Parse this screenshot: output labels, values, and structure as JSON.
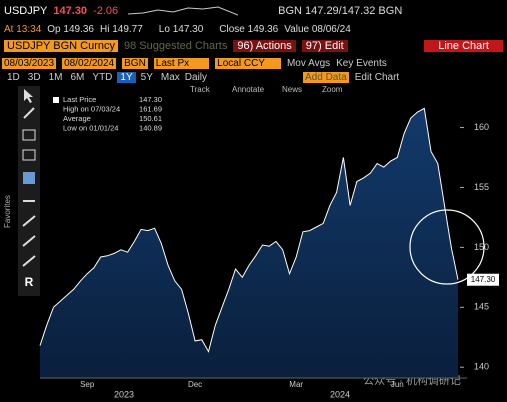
{
  "quote_bar": {
    "ticker": "USDJPY",
    "price": "147.30",
    "change": "-2.06",
    "bid_ask": "BGN 147.29/147.32 BGN"
  },
  "stats_bar": {
    "at": "At 13:34",
    "open": "Op 149.36",
    "high": "Hi 149.77",
    "low": "Lo 147.30",
    "close": "Close 149.36",
    "value": "Value 08/06/24"
  },
  "menu_bar": {
    "security": "USDJPY BGN Curncy",
    "suggested": "98 Suggested Charts",
    "actions": "96) Actions",
    "edit": "97) Edit",
    "chart_type": "Line Chart"
  },
  "settings_bar": {
    "start": "08/03/2023",
    "end": "08/02/2024",
    "source": "BGN",
    "field": "Last Px",
    "currency": "Local CCY",
    "mov_avgs": "Mov Avgs",
    "key_events": "Key Events"
  },
  "period_bar": {
    "periods": [
      "1D",
      "3D",
      "1M",
      "6M",
      "YTD",
      "1Y",
      "5Y",
      "Max"
    ],
    "frequency": "Daily",
    "add_data": "Add Data",
    "edit_chart": "Edit Chart"
  },
  "tools": [
    "Track",
    "Annotate",
    "News",
    "Zoom"
  ],
  "sidebar_label": "Favorites",
  "chart": {
    "type": "area",
    "color": "#ffffff",
    "fill": "#123a6b",
    "legend": [
      {
        "label": "Last Price",
        "value": "147.30"
      },
      {
        "label": "High on 07/03/24",
        "value": "161.69"
      },
      {
        "label": "Average",
        "value": "150.61"
      },
      {
        "label": "Low on 01/01/24",
        "value": "140.89"
      }
    ],
    "categories": [
      null,
      null,
      null,
      null,
      null,
      null,
      null,
      "Sep",
      null,
      null,
      null,
      null,
      null,
      null,
      null,
      null,
      null,
      null,
      null,
      null,
      null,
      null,
      null,
      "Dec",
      null,
      null,
      null,
      null,
      null,
      null,
      null,
      null,
      null,
      null,
      null,
      null,
      null,
      null,
      "Mar",
      null,
      null,
      null,
      null,
      null,
      null,
      null,
      null,
      null,
      null,
      null,
      null,
      null,
      null,
      "Jun",
      null,
      null,
      null,
      null,
      null,
      null,
      null,
      null,
      null
    ],
    "values": [
      141.8,
      143.5,
      145,
      145.5,
      146,
      146.5,
      147.2,
      147.8,
      148.3,
      149.2,
      149.3,
      149.5,
      149.8,
      149.6,
      150.5,
      151.5,
      151.4,
      151.6,
      150.3,
      148.5,
      147.2,
      146.5,
      144.5,
      142.2,
      142.3,
      141.3,
      143.5,
      145,
      146.5,
      148.2,
      147.5,
      148.5,
      149.3,
      150.2,
      150.1,
      150.5,
      149.8,
      147.8,
      149.2,
      151.3,
      151.4,
      151.7,
      152,
      153.5,
      154.6,
      157.5,
      153.5,
      155.5,
      155.8,
      156.2,
      157,
      156.7,
      157.2,
      157.5,
      159.5,
      160.8,
      161.3,
      161.6,
      158,
      157,
      153.5,
      150,
      147.3
    ],
    "ylim": [
      139.1,
      163.3
    ],
    "yticks": [
      140,
      145,
      150,
      155,
      160
    ],
    "years": [
      "2023",
      "2024"
    ]
  },
  "watermark": "公众号 · 机构调研记"
}
